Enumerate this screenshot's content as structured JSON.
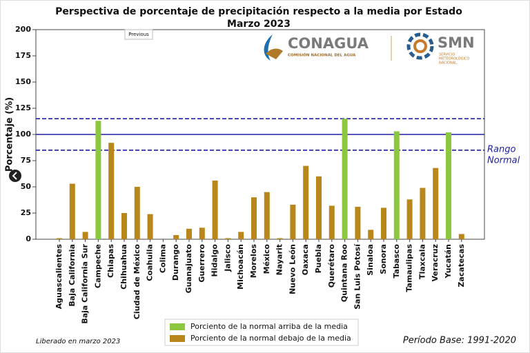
{
  "chart_data": {
    "type": "bar",
    "title": "Perspectiva de porcentaje de precipitación respecto a la media por Estado",
    "subtitle": "Marzo 2023",
    "y_label": "Porcentaje (%)",
    "categories": [
      "Aguascalientes",
      "Baja California",
      "Baja California Sur",
      "Campeche",
      "Chiapas",
      "Chihuahua",
      "Ciudad de México",
      "Coahuila",
      "Colima",
      "Durango",
      "Guanajuato",
      "Guerrero",
      "Hidalgo",
      "Jalisco",
      "Michoacán",
      "Morelos",
      "México",
      "Nayarit",
      "Nuevo León",
      "Oaxaca",
      "Puebla",
      "Querétaro",
      "Quintana Roo",
      "San Luis Potosí",
      "Sinaloa",
      "Sonora",
      "Tabasco",
      "Tamaulipas",
      "Tlaxcala",
      "Veracruz",
      "Yucatán",
      "Zacatecas"
    ],
    "series": [
      {
        "name": "Porciento de la normal arriba de la media",
        "color": "#8dc63f",
        "values": [
          null,
          null,
          null,
          113,
          null,
          null,
          null,
          null,
          null,
          null,
          null,
          null,
          null,
          null,
          null,
          null,
          null,
          null,
          null,
          null,
          null,
          null,
          115,
          null,
          null,
          null,
          103,
          null,
          null,
          null,
          102,
          null
        ]
      },
      {
        "name": "Porciento de la normal debajo de la media",
        "color": "#b8861b",
        "values": [
          1,
          53,
          7,
          null,
          92,
          25,
          50,
          24,
          0,
          4,
          10,
          11,
          56,
          1,
          7,
          40,
          45,
          1,
          33,
          70,
          60,
          32,
          null,
          31,
          9,
          30,
          null,
          38,
          49,
          68,
          null,
          5
        ]
      }
    ],
    "ylim": [
      0,
      200
    ],
    "yticks": [
      0,
      25,
      50,
      75,
      100,
      125,
      150,
      175,
      200
    ],
    "reference_lines": [
      {
        "value": 100,
        "style": "solid",
        "color": "#1f1fa8"
      },
      {
        "value": 85,
        "style": "dashed",
        "color": "#1f1fa8"
      },
      {
        "value": 115,
        "style": "dashed",
        "color": "#1f1fa8"
      }
    ],
    "range_label": [
      "Rango",
      "Normal"
    ],
    "released": "Liberado en marzo 2023",
    "base_period": "Período Base: 1991-2020"
  },
  "logos": {
    "conagua": "CONAGUA",
    "conagua_sub": "COMISIÓN NACIONAL DEL AGUA",
    "smn": "SMN",
    "smn_sub": [
      "SERVICIO",
      "METEOROLÓGICO",
      "NACIONAL"
    ]
  },
  "controls": {
    "previous": "Previous"
  }
}
